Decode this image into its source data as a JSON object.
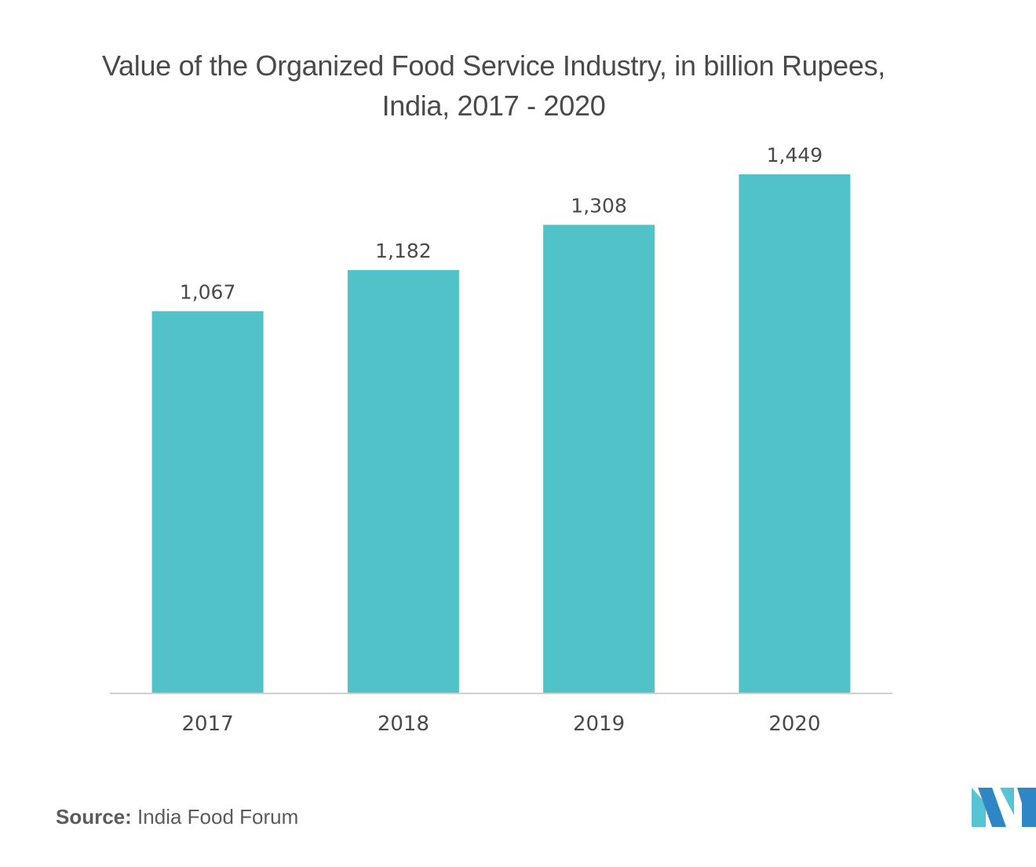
{
  "chart_data": {
    "type": "bar",
    "title": "Value of the Organized Food Service Industry, in billion Rupees, India, 2017 - 2020",
    "categories": [
      "2017",
      "2018",
      "2019",
      "2020"
    ],
    "values": [
      1067,
      1182,
      1308,
      1449
    ],
    "value_labels": [
      "1,067",
      "1,182",
      "1,308",
      "1,449"
    ],
    "xlabel": "",
    "ylabel": "",
    "ylim": [
      0,
      1449
    ],
    "grid": false,
    "legend": "none",
    "bar_color": "#51c3c8"
  },
  "source": {
    "label": "Source:",
    "text": "India Food Forum"
  },
  "logo": {
    "icon": "mordor-intelligence-logo-icon",
    "colors": [
      "#57c3d4",
      "#2f86c4"
    ]
  }
}
